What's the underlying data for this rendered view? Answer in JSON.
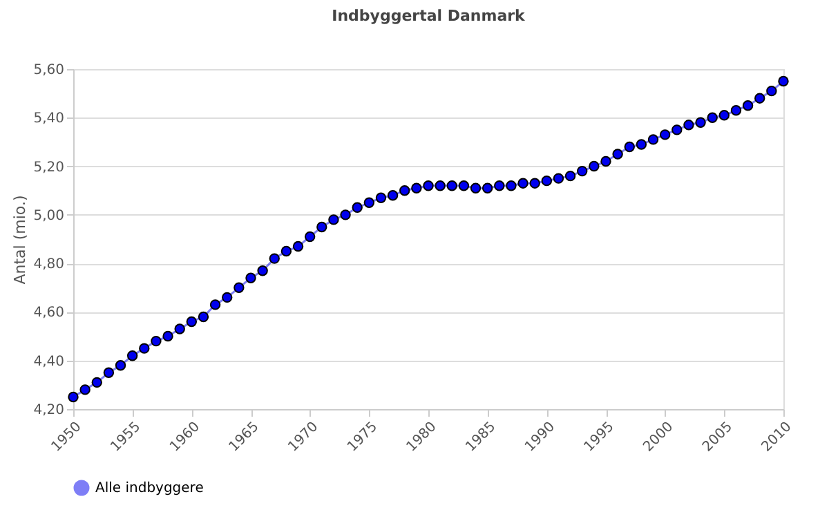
{
  "chart_data": {
    "type": "line",
    "title": "Indbyggertal Danmark",
    "ylabel": "Antal (mio.)",
    "x": [
      1950,
      1951,
      1952,
      1953,
      1954,
      1955,
      1956,
      1957,
      1958,
      1959,
      1960,
      1961,
      1962,
      1963,
      1964,
      1965,
      1966,
      1967,
      1968,
      1969,
      1970,
      1971,
      1972,
      1973,
      1974,
      1975,
      1976,
      1977,
      1978,
      1979,
      1980,
      1981,
      1982,
      1983,
      1984,
      1985,
      1986,
      1987,
      1988,
      1989,
      1990,
      1991,
      1992,
      1993,
      1994,
      1995,
      1996,
      1997,
      1998,
      1999,
      2000,
      2001,
      2002,
      2003,
      2004,
      2005,
      2006,
      2007,
      2008,
      2009,
      2010
    ],
    "series": [
      {
        "name": "Alle indbyggere",
        "color": "#0000ee",
        "values": [
          4.25,
          4.28,
          4.31,
          4.35,
          4.38,
          4.42,
          4.45,
          4.48,
          4.5,
          4.53,
          4.56,
          4.58,
          4.63,
          4.66,
          4.7,
          4.74,
          4.77,
          4.82,
          4.85,
          4.87,
          4.91,
          4.95,
          4.98,
          5.0,
          5.03,
          5.05,
          5.07,
          5.08,
          5.1,
          5.11,
          5.12,
          5.12,
          5.12,
          5.12,
          5.11,
          5.11,
          5.12,
          5.12,
          5.13,
          5.13,
          5.14,
          5.15,
          5.16,
          5.18,
          5.2,
          5.22,
          5.25,
          5.28,
          5.29,
          5.31,
          5.33,
          5.35,
          5.37,
          5.38,
          5.4,
          5.41,
          5.43,
          5.45,
          5.48,
          5.51,
          5.55
        ]
      }
    ],
    "xlim": [
      1950,
      2010
    ],
    "xticks": [
      1950,
      1955,
      1960,
      1965,
      1970,
      1975,
      1980,
      1985,
      1990,
      1995,
      2000,
      2005,
      2010
    ],
    "ylim": [
      4.2,
      5.6
    ],
    "yticks": [
      {
        "value": 4.2,
        "label": "4,20"
      },
      {
        "value": 4.4,
        "label": "4,40"
      },
      {
        "value": 4.6,
        "label": "4,60"
      },
      {
        "value": 4.8,
        "label": "4,80"
      },
      {
        "value": 5.0,
        "label": "5,00"
      },
      {
        "value": 5.2,
        "label": "5,20"
      },
      {
        "value": 5.4,
        "label": "5,40"
      },
      {
        "value": 5.6,
        "label": "5,60"
      }
    ],
    "grid": "y",
    "legend": "bottom",
    "marker": "circle",
    "line_style": "solid"
  }
}
